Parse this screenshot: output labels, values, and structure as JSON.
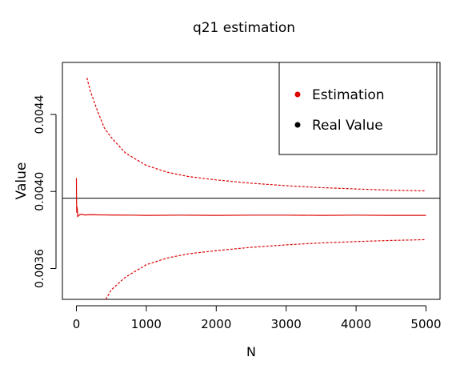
{
  "chart_data": {
    "type": "line",
    "title": "q21 estimation",
    "xlabel": "N",
    "ylabel": "Value",
    "xlim": [
      -200,
      5200
    ],
    "ylim": [
      0.00344,
      0.00467
    ],
    "x_ticks": [
      0,
      1000,
      2000,
      3000,
      4000,
      5000
    ],
    "y_ticks": [
      0.0036,
      0.004,
      0.0044
    ],
    "x_tick_labels": [
      "0",
      "1000",
      "2000",
      "3000",
      "4000",
      "5000"
    ],
    "y_tick_labels": [
      "0.0036",
      "0.0040",
      "0.0044"
    ],
    "legend": {
      "position": "top-right",
      "entries": [
        {
          "label": "Estimation",
          "color": "#dd0000"
        },
        {
          "label": "Real Value",
          "color": "#000000"
        }
      ]
    },
    "real_value": 0.003965,
    "series": [
      {
        "name": "Estimation",
        "color": "#dd0000",
        "style": "solid",
        "x": [
          0,
          2,
          5,
          10,
          20,
          35,
          50,
          80,
          120,
          200,
          300,
          500,
          800,
          1000,
          1500,
          2000,
          2500,
          3000,
          3500,
          4000,
          4500,
          5000
        ],
        "y": [
          0.00407,
          0.00395,
          0.00389,
          0.00392,
          0.00387,
          0.003875,
          0.00388,
          0.003882,
          0.003878,
          0.00388,
          0.003879,
          0.003878,
          0.003877,
          0.003876,
          0.003877,
          0.003876,
          0.003877,
          0.003877,
          0.003876,
          0.003877,
          0.003876,
          0.003876
        ]
      },
      {
        "color": "#dd0000",
        "style": "dashed",
        "x": [
          150,
          200,
          300,
          400,
          500,
          700,
          1000,
          1300,
          1600,
          2000,
          2500,
          3000,
          3500,
          4000,
          4500,
          5000
        ],
        "y": [
          0.00459,
          0.00452,
          0.00442,
          0.00433,
          0.00428,
          0.0042,
          0.004135,
          0.0041,
          0.004078,
          0.00406,
          0.004043,
          0.00403,
          0.00402,
          0.004013,
          0.004007,
          0.004003
        ]
      },
      {
        "color": "#dd0000",
        "style": "dashed",
        "x": [
          420,
          500,
          700,
          1000,
          1300,
          1600,
          2000,
          2500,
          3000,
          3500,
          4000,
          4500,
          5000
        ],
        "y": [
          0.00344,
          0.00349,
          0.003555,
          0.00362,
          0.003655,
          0.003676,
          0.003693,
          0.00371,
          0.003723,
          0.003733,
          0.00374,
          0.003746,
          0.00375
        ]
      }
    ]
  }
}
